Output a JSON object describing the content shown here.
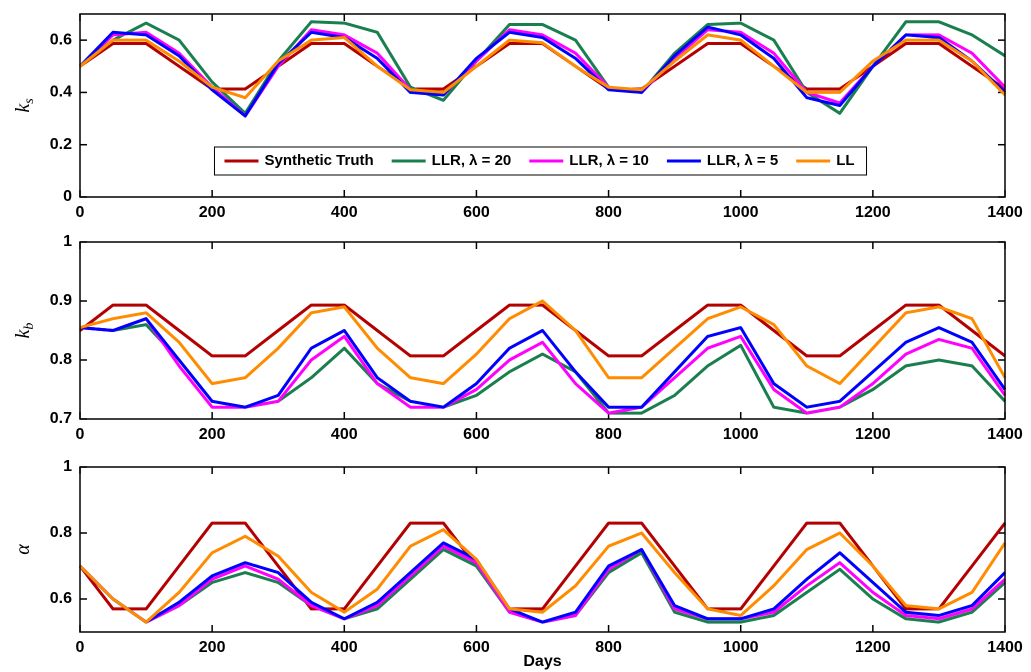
{
  "chart_data": [
    {
      "type": "line",
      "ylabel": "k",
      "ylabel_sub": "s",
      "x": [
        0,
        50,
        100,
        150,
        200,
        250,
        300,
        350,
        400,
        450,
        500,
        550,
        600,
        650,
        700,
        750,
        800,
        850,
        900,
        950,
        1000,
        1050,
        1100,
        1150,
        1200,
        1250,
        1300,
        1350,
        1400
      ],
      "xlim": [
        0,
        1400
      ],
      "xticks": [
        0,
        200,
        400,
        600,
        800,
        1000,
        1200,
        1400
      ],
      "ylim": [
        0,
        0.7
      ],
      "yticks": [
        0,
        0.2,
        0.4,
        0.6
      ],
      "legend": "lower center",
      "series": [
        {
          "name": "Synthetic Truth",
          "color": "#b30000",
          "values": [
            0.5,
            0.587,
            0.587,
            0.5,
            0.413,
            0.413,
            0.5,
            0.587,
            0.587,
            0.5,
            0.413,
            0.413,
            0.5,
            0.587,
            0.587,
            0.5,
            0.413,
            0.413,
            0.5,
            0.587,
            0.587,
            0.5,
            0.413,
            0.413,
            0.5,
            0.587,
            0.587,
            0.5,
            0.413
          ]
        },
        {
          "name": "LLR, λ = 20",
          "color": "#1a7f4f",
          "values": [
            0.5,
            0.6,
            0.665,
            0.6,
            0.44,
            0.32,
            0.52,
            0.67,
            0.665,
            0.63,
            0.42,
            0.37,
            0.52,
            0.66,
            0.66,
            0.6,
            0.42,
            0.4,
            0.55,
            0.66,
            0.665,
            0.6,
            0.4,
            0.32,
            0.5,
            0.67,
            0.67,
            0.62,
            0.54
          ]
        },
        {
          "name": "LLR, λ = 10",
          "color": "#ff00ff",
          "values": [
            0.5,
            0.62,
            0.63,
            0.55,
            0.42,
            0.31,
            0.5,
            0.64,
            0.62,
            0.55,
            0.41,
            0.39,
            0.52,
            0.64,
            0.62,
            0.55,
            0.42,
            0.4,
            0.53,
            0.64,
            0.63,
            0.55,
            0.4,
            0.36,
            0.5,
            0.62,
            0.62,
            0.55,
            0.42
          ]
        },
        {
          "name": "LLR, λ = 5",
          "color": "#0000ff",
          "values": [
            0.5,
            0.63,
            0.62,
            0.54,
            0.41,
            0.31,
            0.51,
            0.63,
            0.61,
            0.53,
            0.4,
            0.39,
            0.53,
            0.63,
            0.61,
            0.53,
            0.41,
            0.4,
            0.54,
            0.65,
            0.62,
            0.53,
            0.38,
            0.35,
            0.5,
            0.62,
            0.61,
            0.52,
            0.4
          ]
        },
        {
          "name": "LL",
          "color": "#ff8c00",
          "values": [
            0.5,
            0.6,
            0.6,
            0.52,
            0.42,
            0.38,
            0.52,
            0.6,
            0.61,
            0.5,
            0.41,
            0.4,
            0.5,
            0.6,
            0.59,
            0.5,
            0.42,
            0.41,
            0.52,
            0.62,
            0.6,
            0.5,
            0.4,
            0.4,
            0.52,
            0.6,
            0.6,
            0.52,
            0.39
          ]
        }
      ]
    },
    {
      "type": "line",
      "ylabel": "k",
      "ylabel_sub": "b",
      "x": [
        0,
        50,
        100,
        150,
        200,
        250,
        300,
        350,
        400,
        450,
        500,
        550,
        600,
        650,
        700,
        750,
        800,
        850,
        900,
        950,
        1000,
        1050,
        1100,
        1150,
        1200,
        1250,
        1300,
        1350,
        1400
      ],
      "xlim": [
        0,
        1400
      ],
      "xticks": [
        0,
        200,
        400,
        600,
        800,
        1000,
        1200,
        1400
      ],
      "ylim": [
        0.7,
        1
      ],
      "yticks": [
        0.7,
        0.8,
        0.9,
        1
      ],
      "series": [
        {
          "color": "#b30000",
          "values": [
            0.85,
            0.893,
            0.893,
            0.85,
            0.807,
            0.807,
            0.85,
            0.893,
            0.893,
            0.85,
            0.807,
            0.807,
            0.85,
            0.893,
            0.893,
            0.85,
            0.807,
            0.807,
            0.85,
            0.893,
            0.893,
            0.85,
            0.807,
            0.807,
            0.85,
            0.893,
            0.893,
            0.85,
            0.807
          ]
        },
        {
          "color": "#1a7f4f",
          "values": [
            0.855,
            0.85,
            0.86,
            0.8,
            0.73,
            0.72,
            0.73,
            0.77,
            0.82,
            0.76,
            0.73,
            0.72,
            0.74,
            0.78,
            0.81,
            0.78,
            0.71,
            0.71,
            0.74,
            0.79,
            0.825,
            0.72,
            0.71,
            0.72,
            0.75,
            0.79,
            0.8,
            0.79,
            0.73
          ]
        },
        {
          "color": "#ff00ff",
          "values": [
            0.855,
            0.85,
            0.87,
            0.79,
            0.72,
            0.72,
            0.73,
            0.8,
            0.84,
            0.76,
            0.72,
            0.72,
            0.75,
            0.8,
            0.83,
            0.76,
            0.71,
            0.72,
            0.77,
            0.82,
            0.84,
            0.75,
            0.71,
            0.72,
            0.76,
            0.81,
            0.835,
            0.82,
            0.74
          ]
        },
        {
          "color": "#0000ff",
          "values": [
            0.855,
            0.85,
            0.87,
            0.8,
            0.73,
            0.72,
            0.74,
            0.82,
            0.85,
            0.77,
            0.73,
            0.72,
            0.76,
            0.82,
            0.85,
            0.78,
            0.72,
            0.72,
            0.78,
            0.84,
            0.855,
            0.76,
            0.72,
            0.73,
            0.78,
            0.83,
            0.855,
            0.83,
            0.75
          ]
        },
        {
          "color": "#ff8c00",
          "values": [
            0.855,
            0.87,
            0.88,
            0.83,
            0.76,
            0.77,
            0.82,
            0.88,
            0.89,
            0.82,
            0.77,
            0.76,
            0.81,
            0.87,
            0.9,
            0.85,
            0.77,
            0.77,
            0.82,
            0.87,
            0.89,
            0.86,
            0.79,
            0.76,
            0.82,
            0.88,
            0.89,
            0.87,
            0.77
          ]
        }
      ]
    },
    {
      "type": "line",
      "ylabel": "α",
      "xlabel": "Days",
      "x": [
        0,
        50,
        100,
        150,
        200,
        250,
        300,
        350,
        400,
        450,
        500,
        550,
        600,
        650,
        700,
        750,
        800,
        850,
        900,
        950,
        1000,
        1050,
        1100,
        1150,
        1200,
        1250,
        1300,
        1350,
        1400
      ],
      "xlim": [
        0,
        1400
      ],
      "xticks": [
        0,
        200,
        400,
        600,
        800,
        1000,
        1200,
        1400
      ],
      "ylim": [
        0.5,
        1
      ],
      "yticks": [
        0.6,
        0.8,
        1
      ],
      "series": [
        {
          "color": "#b30000",
          "values": [
            0.7,
            0.57,
            0.57,
            0.7,
            0.83,
            0.83,
            0.7,
            0.57,
            0.57,
            0.7,
            0.83,
            0.83,
            0.7,
            0.57,
            0.57,
            0.7,
            0.83,
            0.83,
            0.7,
            0.57,
            0.57,
            0.7,
            0.83,
            0.83,
            0.7,
            0.57,
            0.57,
            0.7,
            0.83
          ]
        },
        {
          "color": "#1a7f4f",
          "values": [
            0.7,
            0.6,
            0.53,
            0.58,
            0.65,
            0.68,
            0.65,
            0.58,
            0.54,
            0.57,
            0.66,
            0.75,
            0.7,
            0.56,
            0.53,
            0.55,
            0.68,
            0.74,
            0.56,
            0.53,
            0.53,
            0.55,
            0.62,
            0.69,
            0.6,
            0.54,
            0.53,
            0.56,
            0.65
          ]
        },
        {
          "color": "#ff00ff",
          "values": [
            0.7,
            0.6,
            0.53,
            0.58,
            0.66,
            0.7,
            0.66,
            0.58,
            0.54,
            0.58,
            0.67,
            0.76,
            0.71,
            0.56,
            0.53,
            0.55,
            0.69,
            0.75,
            0.57,
            0.54,
            0.54,
            0.56,
            0.64,
            0.71,
            0.62,
            0.55,
            0.54,
            0.57,
            0.66
          ]
        },
        {
          "color": "#0000ff",
          "values": [
            0.7,
            0.6,
            0.53,
            0.59,
            0.67,
            0.71,
            0.68,
            0.59,
            0.54,
            0.59,
            0.68,
            0.77,
            0.72,
            0.57,
            0.53,
            0.56,
            0.7,
            0.75,
            0.58,
            0.54,
            0.54,
            0.57,
            0.66,
            0.74,
            0.65,
            0.56,
            0.55,
            0.58,
            0.68
          ]
        },
        {
          "color": "#ff8c00",
          "values": [
            0.7,
            0.6,
            0.53,
            0.62,
            0.74,
            0.79,
            0.73,
            0.62,
            0.56,
            0.63,
            0.76,
            0.81,
            0.72,
            0.57,
            0.56,
            0.64,
            0.76,
            0.8,
            0.68,
            0.57,
            0.55,
            0.64,
            0.75,
            0.8,
            0.7,
            0.58,
            0.57,
            0.62,
            0.77
          ]
        }
      ]
    }
  ]
}
